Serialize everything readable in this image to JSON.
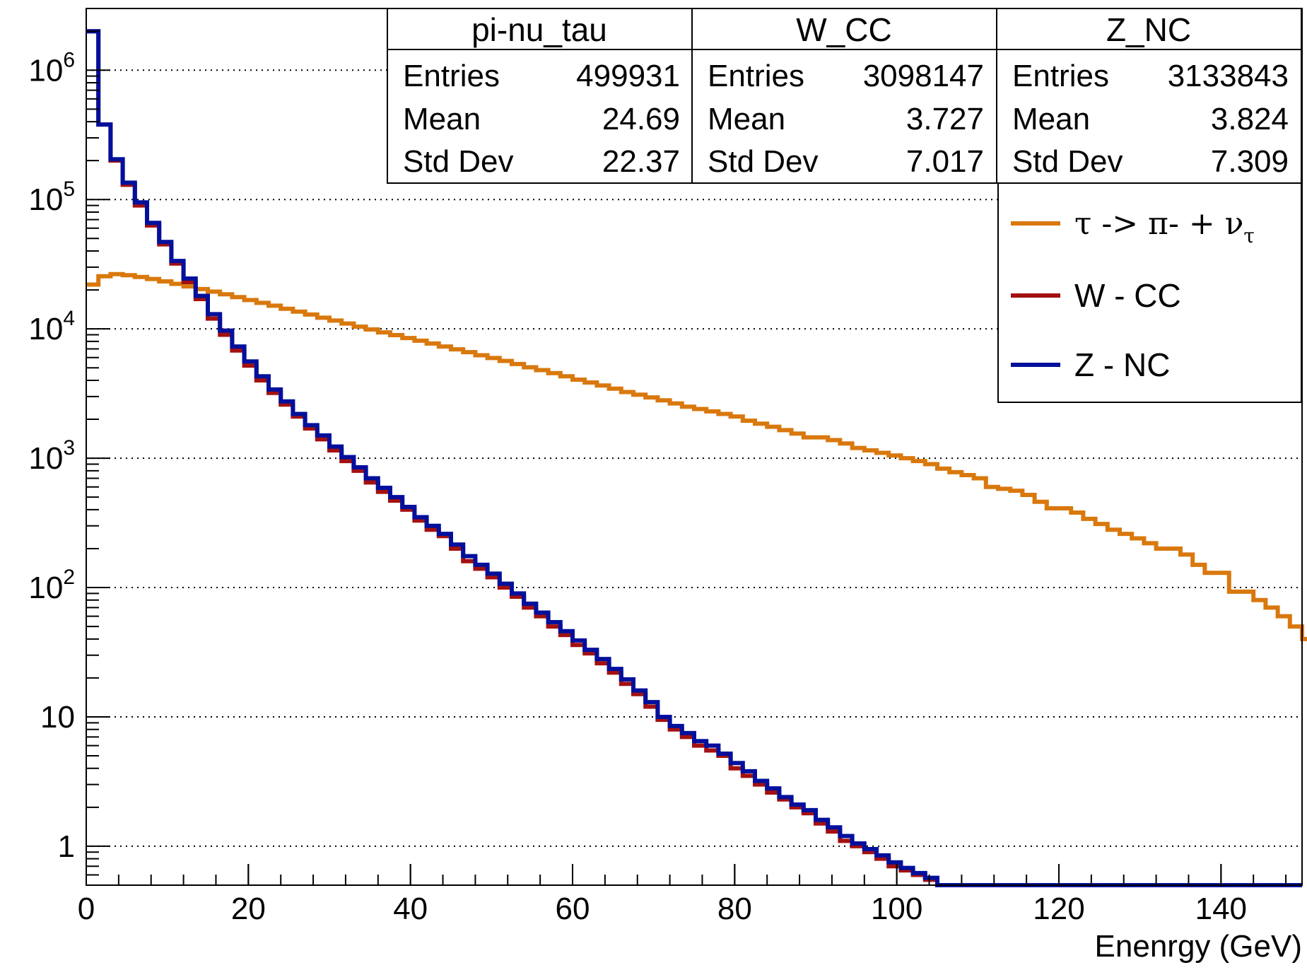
{
  "colors": {
    "tau": "#d9780d",
    "wcc": "#a31010",
    "znc": "#00109c",
    "axis": "#000000",
    "grid": "#000000"
  },
  "stats_boxes": [
    {
      "title": "pi-nu_tau",
      "entries_label": "Entries",
      "entries": "499931",
      "mean_label": "Mean",
      "mean": "24.69",
      "std_label": "Std Dev",
      "std": "22.37"
    },
    {
      "title": "W_CC",
      "entries_label": "Entries",
      "entries": "3098147",
      "mean_label": "Mean",
      "mean": "3.727",
      "std_label": "Std Dev",
      "std": "7.017"
    },
    {
      "title": "Z_NC",
      "entries_label": "Entries",
      "entries": "3133843",
      "mean_label": "Mean",
      "mean": "3.824",
      "std_label": "Std Dev",
      "std": "7.309"
    }
  ],
  "legend": {
    "tau": {
      "main": "τ -> π- + ν",
      "sub": "τ"
    },
    "wcc": "W - CC",
    "znc": "Z - NC"
  },
  "chart_data": {
    "type": "line",
    "step": true,
    "xlabel": "Enenrgy (GeV)",
    "ylabel": "",
    "title": "",
    "xlim": [
      0,
      150
    ],
    "ylim": [
      0.5,
      3000000
    ],
    "y_scale": "log",
    "grid": "horizontal dotted",
    "legend_position": "top-right",
    "x_ticks": [
      "0",
      "20",
      "40",
      "60",
      "80",
      "100",
      "120",
      "140"
    ],
    "y_ticks": [
      {
        "value": 1,
        "base": "1",
        "exp": ""
      },
      {
        "value": 10,
        "base": "10",
        "exp": ""
      },
      {
        "value": 100,
        "base": "10",
        "exp": "2"
      },
      {
        "value": 1000,
        "base": "10",
        "exp": "3"
      },
      {
        "value": 10000,
        "base": "10",
        "exp": "4"
      },
      {
        "value": 100000,
        "base": "10",
        "exp": "5"
      },
      {
        "value": 1000000,
        "base": "10",
        "exp": "6"
      }
    ],
    "bin_width": 1.5,
    "series": [
      {
        "key": "tau",
        "values": [
          22000,
          25500,
          26500,
          26000,
          25200,
          24300,
          23300,
          22300,
          21300,
          20300,
          19400,
          18500,
          17600,
          16700,
          15900,
          15100,
          14300,
          13600,
          12900,
          12200,
          11600,
          11000,
          10400,
          9900,
          9400,
          8950,
          8500,
          8100,
          7700,
          7300,
          6950,
          6600,
          6250,
          5950,
          5650,
          5350,
          5050,
          4800,
          4550,
          4300,
          4050,
          3850,
          3650,
          3450,
          3250,
          3100,
          2950,
          2800,
          2650,
          2500,
          2400,
          2300,
          2200,
          2100,
          1950,
          1850,
          1750,
          1650,
          1550,
          1450,
          1450,
          1380,
          1300,
          1200,
          1150,
          1100,
          1050,
          1000,
          950,
          900,
          830,
          780,
          740,
          700,
          600,
          580,
          560,
          520,
          460,
          410,
          410,
          380,
          340,
          310,
          280,
          260,
          240,
          220,
          200,
          200,
          180,
          150,
          130,
          130,
          93,
          93,
          80,
          70,
          60,
          50,
          40,
          30,
          22,
          22,
          27,
          17,
          10,
          5,
          3.1,
          2.1,
          1.3,
          0.5,
          0.5,
          0.5,
          0.5,
          0.5,
          0.5,
          0.5,
          0.5,
          0.5,
          0.5,
          0.5,
          0.5,
          0.5,
          0.5,
          0.5,
          0.5,
          0.5,
          0.5,
          0.5,
          0.5,
          0.5,
          0.5,
          0.5,
          0.5,
          0.5,
          0.5,
          0.5,
          0.5,
          0.5,
          0.5,
          0.5,
          0.5,
          0.5,
          0.5,
          0.5,
          0.5,
          0.5
        ]
      },
      {
        "key": "wcc",
        "values": [
          2000000,
          380000,
          200000,
          130000,
          90000,
          63000,
          45000,
          32000,
          23000,
          17000,
          12000,
          9000,
          6800,
          5200,
          4000,
          3200,
          2600,
          2100,
          1700,
          1400,
          1150,
          950,
          800,
          650,
          550,
          470,
          400,
          330,
          280,
          250,
          200,
          160,
          140,
          120,
          100,
          85,
          70,
          60,
          50,
          43,
          36,
          31,
          26,
          22,
          18,
          15,
          12,
          9.5,
          8,
          7,
          6,
          5.5,
          5,
          4,
          3.5,
          3,
          2.6,
          2.3,
          2,
          1.8,
          1.5,
          1.3,
          1.1,
          1,
          0.9,
          0.8,
          0.7,
          0.65,
          0.6,
          0.55,
          0.5,
          0.5,
          0.5,
          0.5,
          0.5,
          0.5,
          0.5,
          0.5,
          0.5,
          0.5,
          0.5,
          0.5,
          0.5,
          0.5,
          0.5,
          0.5,
          0.5,
          0.5,
          0.5,
          0.5,
          0.5,
          0.5,
          0.5,
          0.5,
          0.5,
          0.5,
          0.5,
          0.5,
          0.5,
          0.5
        ]
      },
      {
        "key": "znc",
        "values": [
          2000000,
          380000,
          205000,
          135000,
          95000,
          66000,
          47000,
          33500,
          24500,
          18000,
          13000,
          9700,
          7300,
          5600,
          4300,
          3400,
          2750,
          2200,
          1800,
          1500,
          1230,
          1020,
          850,
          700,
          590,
          500,
          420,
          350,
          300,
          260,
          215,
          175,
          150,
          128,
          107,
          90,
          75,
          64,
          54,
          46,
          39,
          33,
          28,
          23.5,
          19.5,
          16,
          13,
          10,
          8.5,
          7.5,
          6.5,
          6,
          5.2,
          4.4,
          3.8,
          3.2,
          2.8,
          2.4,
          2.1,
          1.9,
          1.6,
          1.4,
          1.2,
          1.05,
          0.95,
          0.85,
          0.75,
          0.68,
          0.62,
          0.57,
          0.5,
          0.5,
          0.5,
          0.5,
          0.5,
          0.5,
          0.5,
          0.5,
          0.5,
          0.5,
          0.5,
          0.5,
          0.5,
          0.5,
          0.5,
          0.5,
          0.5,
          0.5,
          0.5,
          0.5,
          0.5,
          0.5,
          0.5,
          0.5,
          0.5,
          0.5,
          0.5,
          0.5,
          0.5,
          0.5
        ]
      }
    ]
  }
}
